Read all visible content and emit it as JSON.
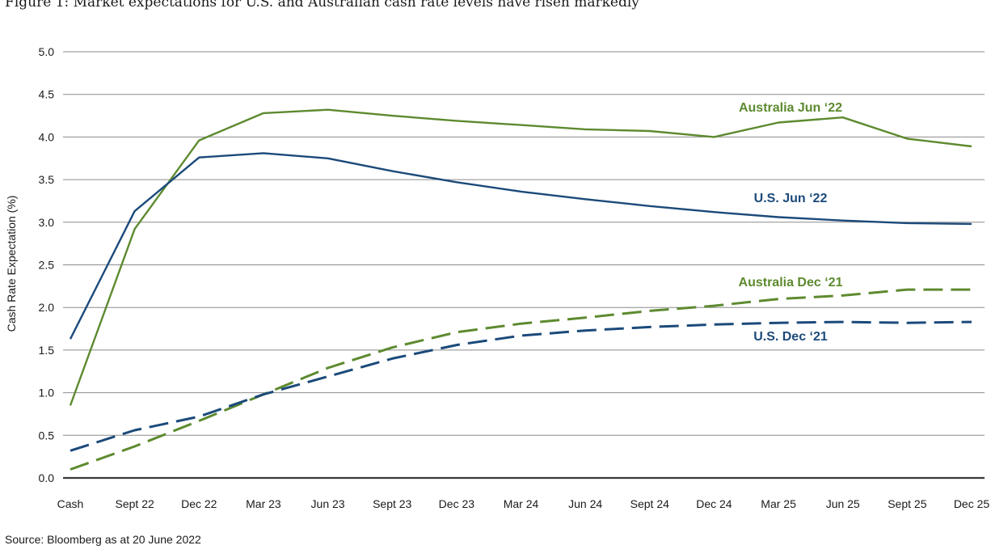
{
  "figure": {
    "title": "Figure 1: Market expectations for U.S. and Australian cash rate levels have risen markedly",
    "source": "Source: Bloomberg as at 20 June 2022"
  },
  "chart_data": {
    "type": "line",
    "title": "Figure 1: Market expectations for U.S. and Australian cash rate levels have risen markedly",
    "xlabel": "",
    "ylabel": "Cash Rate Expectation (%)",
    "ylim": [
      0,
      5
    ],
    "yticks": [
      "0.0",
      "0.5",
      "1.0",
      "1.5",
      "2.0",
      "2.5",
      "3.0",
      "3.5",
      "4.0",
      "4.5",
      "5.0"
    ],
    "grid": "horizontal",
    "categories": [
      "Cash",
      "Sept 22",
      "Dec 22",
      "Mar 23",
      "Jun 23",
      "Sept 23",
      "Dec 23",
      "Mar 24",
      "Jun 24",
      "Sept 24",
      "Dec 24",
      "Mar 25",
      "Jun 25",
      "Sept 25",
      "Dec 25"
    ],
    "series": [
      {
        "name": "Australia Jun ‘22",
        "color": "#5d8a2f",
        "dash": "solid",
        "values": [
          0.85,
          2.92,
          3.96,
          4.28,
          4.32,
          4.25,
          4.19,
          4.14,
          4.09,
          4.07,
          4.0,
          4.17,
          4.23,
          3.98,
          3.89
        ]
      },
      {
        "name": "U.S. Jun ‘22",
        "color": "#1b4a7a",
        "dash": "solid",
        "values": [
          1.63,
          3.13,
          3.76,
          3.81,
          3.75,
          3.6,
          3.47,
          3.36,
          3.27,
          3.19,
          3.12,
          3.06,
          3.02,
          2.99,
          2.98
        ]
      },
      {
        "name": "Australia Dec ‘21",
        "color": "#5d8a2f",
        "dash": "dashed",
        "values": [
          0.1,
          0.37,
          0.67,
          0.98,
          1.29,
          1.53,
          1.71,
          1.81,
          1.88,
          1.96,
          2.02,
          2.1,
          2.14,
          2.21,
          2.21
        ]
      },
      {
        "name": "U.S. Dec ‘21",
        "color": "#1b4a7a",
        "dash": "dashed",
        "values": [
          0.32,
          0.56,
          0.72,
          0.98,
          1.19,
          1.4,
          1.56,
          1.67,
          1.73,
          1.77,
          1.8,
          1.82,
          1.83,
          1.82,
          1.83
        ]
      }
    ]
  }
}
